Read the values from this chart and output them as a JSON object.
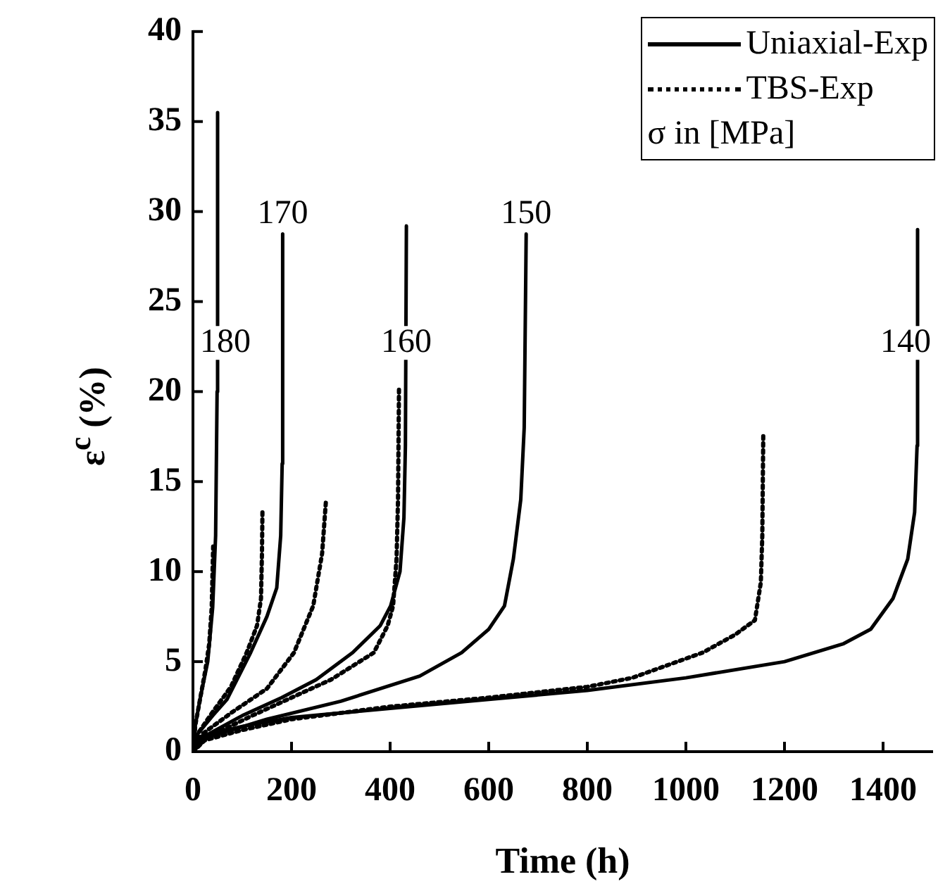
{
  "chart_data": {
    "type": "line",
    "xlabel": "Time (h)",
    "ylabel": "ε$^{c}$ (%)",
    "xlim": [
      0,
      1500
    ],
    "xticks": [
      0,
      200,
      400,
      600,
      800,
      1000,
      1200,
      1400
    ],
    "ylim": [
      0,
      40
    ],
    "yticks": [
      0,
      5,
      10,
      15,
      20,
      25,
      30,
      35,
      40
    ],
    "grid": false,
    "legend": "top right",
    "legend_title": "σ in [MPa]",
    "marker": "none",
    "series": [
      {
        "name": "Uniaxial-Exp",
        "color": "#000000",
        "line_style": "solid",
        "x": [
          0,
          5,
          15,
          30,
          40,
          46,
          49,
          50
        ],
        "values": [
          0,
          1.5,
          3,
          5,
          8,
          12,
          20,
          35.5
        ]
      },
      {
        "color": "#000000",
        "line_style": "solid",
        "x": [
          0,
          10,
          40,
          69,
          117,
          150,
          170,
          178,
          181,
          182
        ],
        "values": [
          0,
          1,
          2,
          2.9,
          5.5,
          7.5,
          9.1,
          12,
          16,
          28.75
        ]
      },
      {
        "color": "#000000",
        "line_style": "solid",
        "x": [
          0,
          20,
          100,
          180,
          250,
          324,
          380,
          401,
          420,
          428,
          431,
          433
        ],
        "values": [
          0,
          0.8,
          2,
          3,
          4,
          5.5,
          7,
          8.1,
          10,
          13,
          17,
          29.2
        ]
      },
      {
        "color": "#000000",
        "line_style": "solid",
        "x": [
          0,
          30,
          150,
          300,
          460,
          545,
          600,
          632,
          650,
          665,
          672,
          676
        ],
        "values": [
          0,
          0.8,
          1.8,
          2.8,
          4.2,
          5.5,
          6.8,
          8.1,
          10.7,
          14,
          18,
          28.75
        ]
      },
      {
        "color": "#000000",
        "line_style": "solid",
        "x": [
          0,
          10,
          100,
          200,
          400,
          600,
          800,
          1000,
          1200,
          1320,
          1375,
          1420,
          1450,
          1464,
          1469,
          1470
        ],
        "values": [
          0,
          0.8,
          1.4,
          1.9,
          2.4,
          2.9,
          3.4,
          4.1,
          5,
          6,
          6.8,
          8.5,
          10.7,
          13.3,
          17,
          29
        ]
      },
      {
        "name": "TBS-Exp",
        "color": "#000000",
        "line_style": "dotted",
        "x": [
          0,
          5,
          15,
          25,
          33,
          38,
          41
        ],
        "values": [
          0,
          1.5,
          3,
          4.5,
          6,
          8,
          11.4
        ]
      },
      {
        "color": "#000000",
        "line_style": "dotted",
        "x": [
          0,
          10,
          40,
          77,
          109,
          130,
          138,
          140,
          141
        ],
        "values": [
          0,
          1,
          2.2,
          3.6,
          5.5,
          7,
          8.5,
          11,
          13.4
        ]
      },
      {
        "color": "#000000",
        "line_style": "dotted",
        "x": [
          0,
          20,
          80,
          150,
          205,
          244,
          262,
          270
        ],
        "values": [
          0,
          1,
          2.2,
          3.5,
          5.5,
          8.1,
          11,
          14
        ]
      },
      {
        "color": "#000000",
        "line_style": "dotted",
        "x": [
          0,
          30,
          120,
          200,
          280,
          367,
          395,
          406,
          413,
          416,
          418
        ],
        "values": [
          0,
          0.8,
          2,
          3,
          4,
          5.5,
          7,
          8.1,
          10.7,
          14,
          20.2
        ]
      },
      {
        "color": "#000000",
        "line_style": "dotted",
        "x": [
          0,
          20,
          100,
          200,
          400,
          600,
          800,
          891,
          1034,
          1100,
          1140,
          1152,
          1155,
          1157
        ],
        "values": [
          0,
          0.6,
          1.2,
          1.8,
          2.5,
          3,
          3.6,
          4.1,
          5.5,
          6.5,
          7.3,
          9.4,
          12,
          17.7
        ]
      }
    ],
    "annotations": [
      {
        "text": "180",
        "x": 50,
        "y": 22.7
      },
      {
        "text": "170",
        "x": 182,
        "y": 28.75
      },
      {
        "text": "160",
        "x": 433,
        "y": 22.7
      },
      {
        "text": "150",
        "x": 676,
        "y": 28.75
      },
      {
        "text": "140",
        "x": 1470,
        "y": 22.7
      }
    ]
  }
}
